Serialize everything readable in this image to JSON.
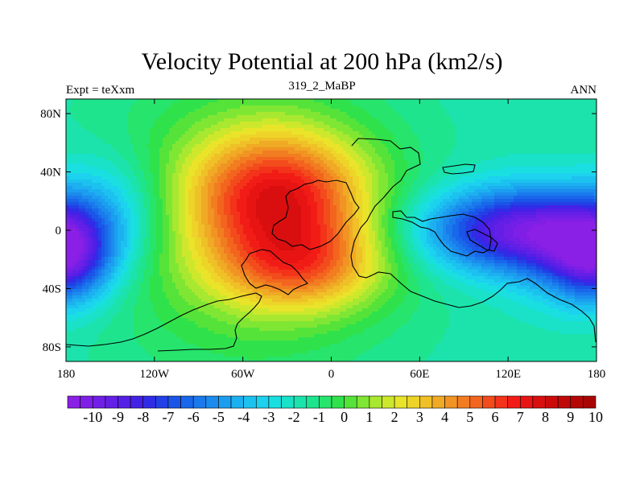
{
  "chart_data": {
    "type": "heatmap",
    "title": "Velocity Potential at 200 hPa (km2/s)",
    "subtitle_left": "Expt = teXxm",
    "subtitle_center": "319_2_MaBP",
    "subtitle_right": "ANN",
    "x_ticks": [
      {
        "value": -180,
        "label": "180"
      },
      {
        "value": -120,
        "label": "120W"
      },
      {
        "value": -60,
        "label": "60W"
      },
      {
        "value": 0,
        "label": "0"
      },
      {
        "value": 60,
        "label": "60E"
      },
      {
        "value": 120,
        "label": "120E"
      },
      {
        "value": 180,
        "label": "180"
      }
    ],
    "y_ticks": [
      {
        "value": 80,
        "label": "80N"
      },
      {
        "value": 40,
        "label": "40N"
      },
      {
        "value": 0,
        "label": "0"
      },
      {
        "value": -40,
        "label": "40S"
      },
      {
        "value": -80,
        "label": "80S"
      }
    ],
    "xlim": [
      -180,
      180
    ],
    "ylim": [
      -90,
      90
    ],
    "colorbar": {
      "min": -10.5,
      "max": 10.5,
      "step": 0.5,
      "labels": [
        "-10",
        "-9",
        "-8",
        "-7",
        "-6",
        "-5",
        "-4",
        "-3",
        "-2",
        "-1",
        "0",
        "1",
        "2",
        "3",
        "4",
        "5",
        "6",
        "7",
        "8",
        "9",
        "10"
      ],
      "colors": [
        "#8a1fe6",
        "#7f1fe6",
        "#711fe6",
        "#641fe6",
        "#551fe6",
        "#4421e6",
        "#302ce6",
        "#2240e6",
        "#1b55e8",
        "#1967ea",
        "#1a7aec",
        "#1b8cee",
        "#1c9ef0",
        "#1cb0f0",
        "#1cc2ef",
        "#1cd2ee",
        "#1adfe1",
        "#19e2c8",
        "#1ce3ac",
        "#1fe48e",
        "#26e46c",
        "#2fe24c",
        "#55e33a",
        "#80e634",
        "#a8e830",
        "#cde82c",
        "#e9e42a",
        "#eed428",
        "#efc027",
        "#f0aa25",
        "#f19423",
        "#f27d21",
        "#f3651f",
        "#f34c1c",
        "#f3331a",
        "#f21c17",
        "#e81414",
        "#d90f0f",
        "#cc0a0a",
        "#c00808",
        "#b50606",
        "#aa0505"
      ]
    },
    "field": {
      "description": "annual mean 200hPa velocity potential; positive maximum over Africa/Atlantic, negative minimum over the tropical Indian Ocean / maritime continent",
      "centers": [
        {
          "lon": -35,
          "lat": 25,
          "amplitude": 6.5,
          "lon_width": 42,
          "lat_width": 30
        },
        {
          "lon": -20,
          "lat": -25,
          "amplitude": 4.5,
          "lon_width": 40,
          "lat_width": 22
        },
        {
          "lon": -55,
          "lat": 5,
          "amplitude": 3.0,
          "lon_width": 70,
          "lat_width": 70
        },
        {
          "lon": 125,
          "lat": 0,
          "amplitude": -7.5,
          "lon_width": 45,
          "lat_width": 20
        },
        {
          "lon": 175,
          "lat": -15,
          "amplitude": -4.0,
          "lon_width": 30,
          "lat_width": 25
        },
        {
          "lon": -180,
          "lat": -20,
          "amplitude": -4.0,
          "lon_width": 20,
          "lat_width": 20
        },
        {
          "lon": -150,
          "lat": 20,
          "amplitude": -2.0,
          "lon_width": 30,
          "lat_width": 25
        }
      ],
      "background": -1.3
    }
  }
}
